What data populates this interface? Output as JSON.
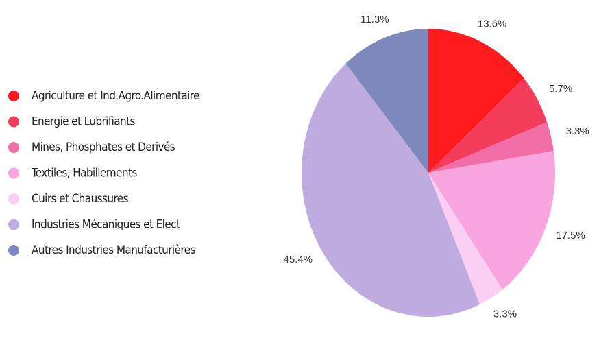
{
  "chart_data": {
    "type": "pie",
    "categories": [
      "Agriculture et Ind.Agro.Alimentaire",
      "Energie et Lubrifiants",
      "Mines, Phosphates et Derivés",
      "Textiles, Habillements",
      "Cuirs et Chaussures",
      "Industries Mécaniques et Elect",
      "Autres Industries Manufacturières"
    ],
    "values": [
      13.6,
      5.7,
      3.3,
      17.5,
      3.3,
      45.4,
      11.3
    ],
    "value_labels": [
      "13.6%",
      "5.7%",
      "3.3%",
      "17.5%",
      "3.3%",
      "45.4%",
      "11.3%"
    ],
    "colors": [
      "#fe1b1e",
      "#f43c5c",
      "#f26ea6",
      "#f9a5df",
      "#fbcff4",
      "#c0abe0",
      "#7f88bc"
    ],
    "legend": "left"
  }
}
